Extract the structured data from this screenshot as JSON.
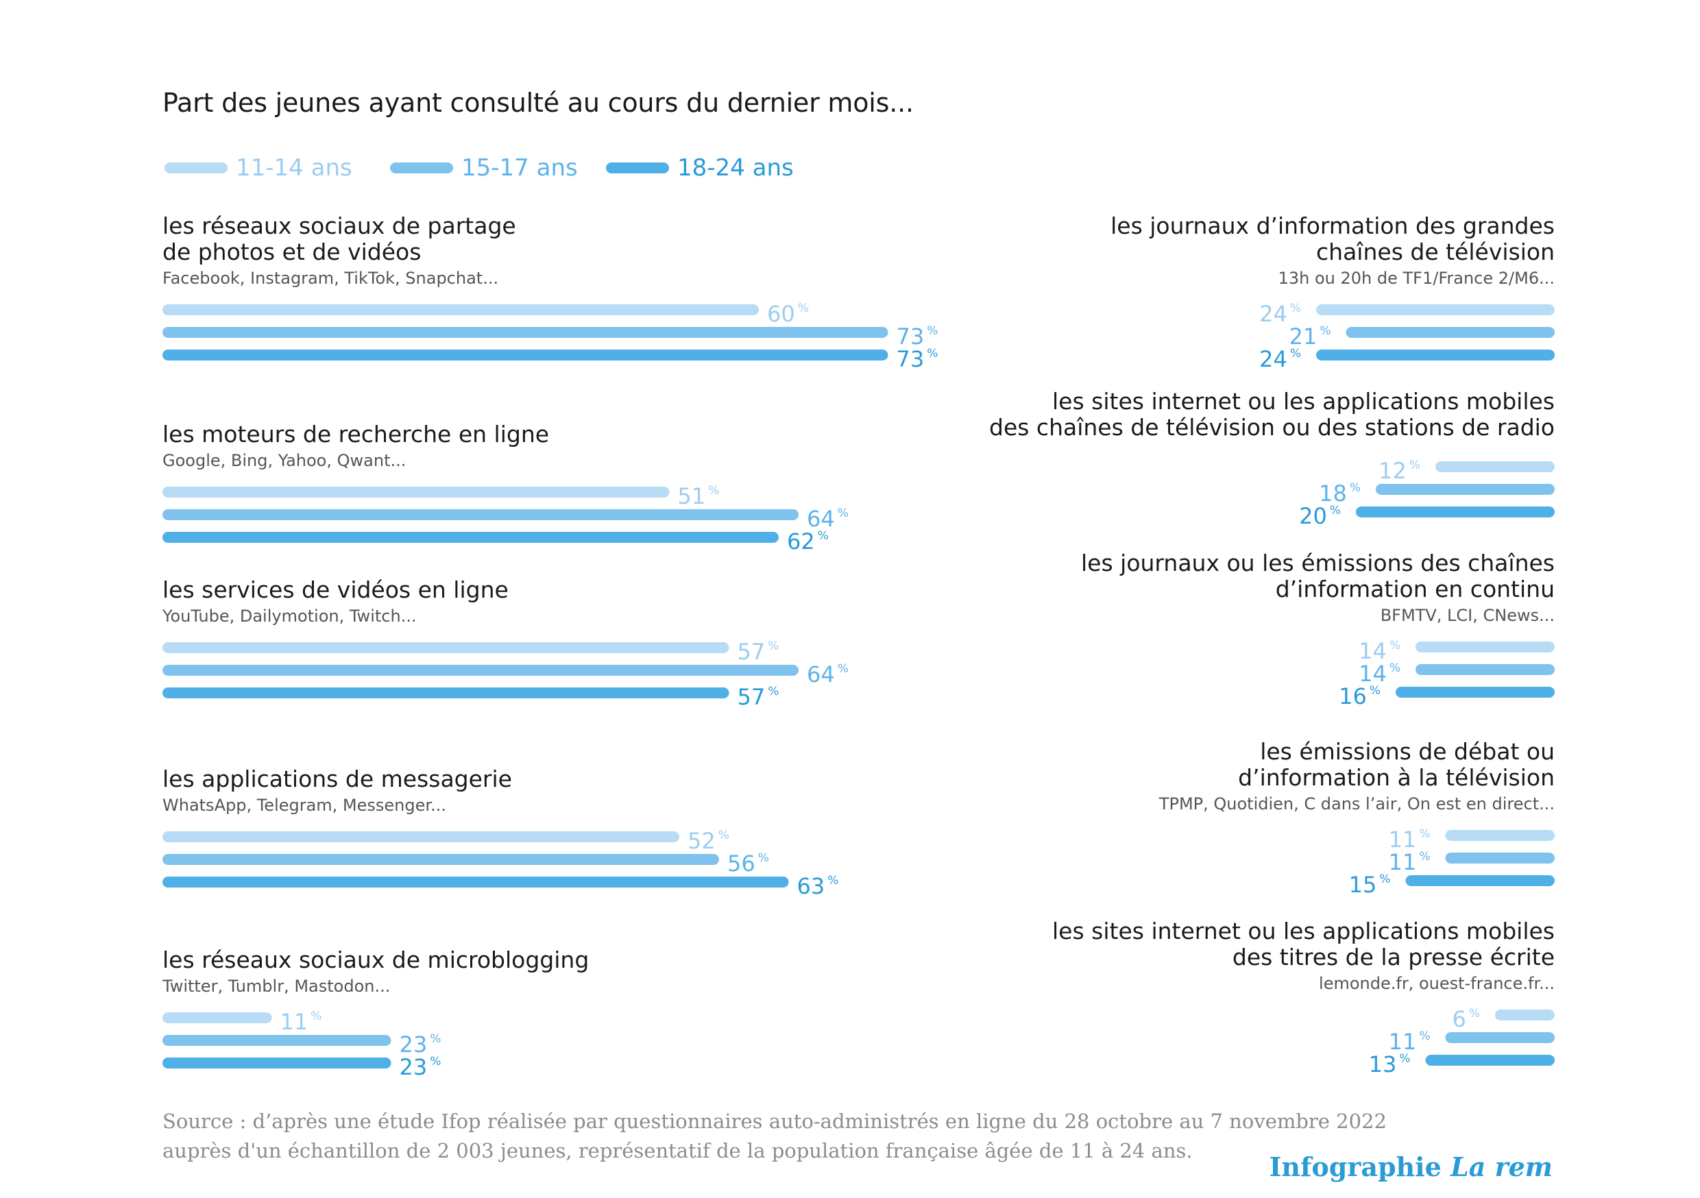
{
  "title": "Part des jeunes ayant consulté au cours du dernier mois...",
  "colors": {
    "11-14 ans": "#b8dcf5",
    "15-17 ans": "#80c2ee",
    "18-24 ans": "#4fb0e8",
    "label_11-14 ans": "#9ccdf0",
    "label_15-17 ans": "#5cb3ea",
    "label_18-24 ans": "#2a9bd6"
  },
  "legend": [
    "11-14 ans",
    "15-17 ans",
    "18-24 ans"
  ],
  "source": {
    "line1": "Source : d’après une étude Ifop réalisée par questionnaires auto-administrés en ligne du 28 octobre au 7 novembre 2022",
    "line2": "auprès d'un échantillon de 2 003 jeunes, représentatif de la population française âgée de 11 à 24 ans."
  },
  "credit": {
    "main": "Infographie",
    "italic": "La rem"
  },
  "chart_data": {
    "type": "bar",
    "unit": "%",
    "series_names": [
      "11-14 ans",
      "15-17 ans",
      "18-24 ans"
    ],
    "left": [
      {
        "title": [
          "les réseaux sociaux de partage",
          "de photos et de vidéos"
        ],
        "subtitle": "Facebook, Instagram, TikTok, Snapchat...",
        "values": [
          60,
          73,
          73
        ]
      },
      {
        "title": [
          "les moteurs de recherche en ligne"
        ],
        "subtitle": "Google, Bing, Yahoo, Qwant...",
        "values": [
          51,
          64,
          62
        ]
      },
      {
        "title": [
          "les services de vidéos en ligne"
        ],
        "subtitle": "YouTube, Dailymotion, Twitch...",
        "values": [
          57,
          64,
          57
        ]
      },
      {
        "title": [
          "les applications de messagerie"
        ],
        "subtitle": "WhatsApp, Telegram, Messenger...",
        "values": [
          52,
          56,
          63
        ]
      },
      {
        "title": [
          "les réseaux sociaux de microblogging"
        ],
        "subtitle": "Twitter, Tumblr, Mastodon...",
        "values": [
          11,
          23,
          23
        ]
      }
    ],
    "right": [
      {
        "title": [
          "les journaux d’information des grandes",
          "chaînes de télévision"
        ],
        "subtitle": "13h ou 20h de TF1/France 2/M6...",
        "values": [
          24,
          21,
          24
        ]
      },
      {
        "title": [
          "les sites internet ou les applications mobiles",
          "des chaînes de télévision ou des stations de radio"
        ],
        "subtitle": "",
        "values": [
          12,
          18,
          20
        ]
      },
      {
        "title": [
          "les journaux ou les émissions des chaînes",
          "d’information en continu"
        ],
        "subtitle": "BFMTV, LCI, CNews...",
        "values": [
          14,
          14,
          16
        ]
      },
      {
        "title": [
          "les émissions de débat ou",
          "d’information à la télévision"
        ],
        "subtitle": "TPMP, Quotidien, C dans l’air, On est en direct...",
        "values": [
          11,
          11,
          15
        ]
      },
      {
        "title": [
          "les sites internet ou les applications mobiles",
          "des titres de la presse écrite"
        ],
        "subtitle": "lemonde.fr, ouest-france.fr...",
        "values": [
          6,
          11,
          13
        ]
      }
    ]
  }
}
